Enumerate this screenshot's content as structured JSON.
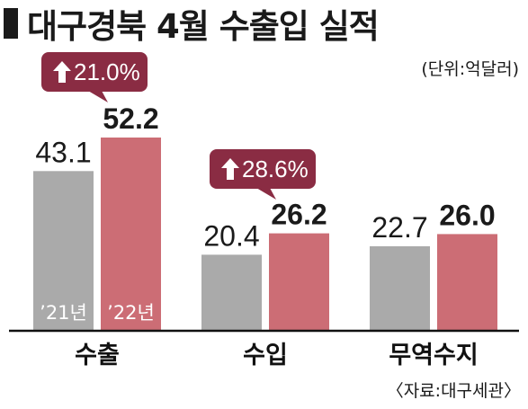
{
  "title": "대구경북 4월 수출입 실적",
  "unit_label": "(단위:억달러)",
  "source_label": "〈자료:대구세관〉",
  "colors": {
    "series_2021": "#aaaaaa",
    "series_2022": "#cc6d75",
    "callout": "#8a2c43",
    "axis": "#111111"
  },
  "chart_data": {
    "type": "bar",
    "categories": [
      "수출",
      "수입",
      "무역수지"
    ],
    "series": [
      {
        "name": "’21년",
        "values": [
          43.1,
          20.4,
          22.7
        ]
      },
      {
        "name": "’22년",
        "values": [
          52.2,
          26.2,
          26.0
        ]
      }
    ],
    "value_labels": [
      [
        "43.1",
        "20.4",
        "22.7"
      ],
      [
        "52.2",
        "26.2",
        "26.0"
      ]
    ],
    "annotations": [
      {
        "category": "수출",
        "text": "21.0%",
        "icon": "up-arrow-icon"
      },
      {
        "category": "수입",
        "text": "28.6%",
        "icon": "up-arrow-icon"
      }
    ],
    "ylim": [
      0,
      52.2
    ],
    "grid": false,
    "legend": "inside-bars"
  }
}
